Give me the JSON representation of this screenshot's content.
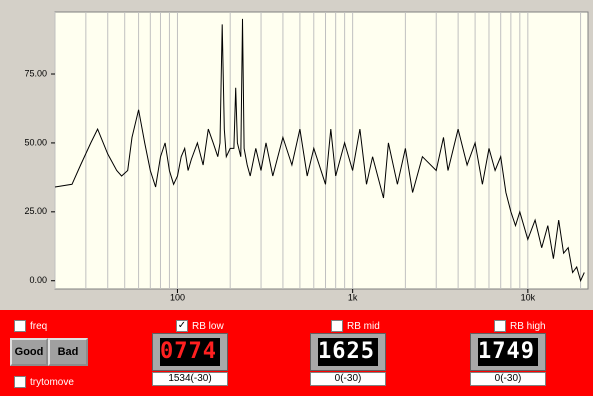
{
  "chart_data": {
    "type": "line",
    "color": "#000000",
    "log_x": true,
    "x": [
      20,
      25,
      28,
      32,
      35,
      40,
      45,
      48,
      52,
      55,
      60,
      65,
      70,
      75,
      80,
      85,
      90,
      95,
      100,
      105,
      110,
      115,
      120,
      130,
      140,
      150,
      160,
      170,
      175,
      180,
      185,
      190,
      200,
      210,
      215,
      220,
      230,
      235,
      240,
      250,
      260,
      280,
      300,
      320,
      350,
      400,
      450,
      500,
      550,
      600,
      700,
      750,
      800,
      900,
      1000,
      1100,
      1200,
      1300,
      1500,
      1600,
      1800,
      2000,
      2200,
      2500,
      3000,
      3300,
      3500,
      4000,
      4500,
      5000,
      5500,
      6000,
      6500,
      7000,
      7500,
      8000,
      8500,
      9000,
      10000,
      11000,
      12000,
      13000,
      14000,
      15000,
      16000,
      17000,
      18000,
      19000,
      20000,
      21000
    ],
    "values": [
      34,
      35,
      42,
      50,
      55,
      46,
      40,
      38,
      40,
      52,
      62,
      50,
      40,
      34,
      45,
      50,
      40,
      35,
      38,
      45,
      48,
      40,
      44,
      50,
      42,
      55,
      50,
      45,
      50,
      93,
      55,
      45,
      48,
      48,
      70,
      50,
      45,
      95,
      48,
      42,
      38,
      48,
      40,
      50,
      38,
      52,
      42,
      55,
      38,
      48,
      35,
      55,
      38,
      50,
      40,
      55,
      35,
      45,
      30,
      50,
      35,
      48,
      32,
      45,
      40,
      52,
      40,
      55,
      42,
      50,
      35,
      48,
      40,
      45,
      32,
      25,
      20,
      25,
      15,
      22,
      12,
      20,
      8,
      22,
      10,
      12,
      3,
      5,
      0,
      3
    ],
    "xlim": [
      20,
      22050
    ],
    "ylim": [
      -3,
      97.5
    ],
    "xticks": [
      {
        "value": 100,
        "label": "100"
      },
      {
        "value": 1000,
        "label": "1k"
      },
      {
        "value": 10000,
        "label": "10k"
      }
    ],
    "xgrid": [
      20,
      30,
      40,
      50,
      60,
      70,
      80,
      90,
      100,
      200,
      300,
      400,
      500,
      600,
      700,
      800,
      900,
      1000,
      2000,
      3000,
      4000,
      5000,
      6000,
      7000,
      8000,
      9000,
      10000,
      20000
    ],
    "yticks": [
      {
        "value": 0,
        "label": "0.00"
      },
      {
        "value": 25,
        "label": "25.00"
      },
      {
        "value": 50,
        "label": "50.00"
      },
      {
        "value": 75,
        "label": "75.00"
      }
    ]
  },
  "controls": {
    "checkboxes": [
      {
        "label": "freq",
        "checked": false
      },
      {
        "label": "RB low",
        "checked": true
      },
      {
        "label": "RB mid",
        "checked": false
      },
      {
        "label": "RB high",
        "checked": false
      },
      {
        "label": "trytomove",
        "checked": false
      }
    ],
    "buttons": [
      "Good",
      "Bad"
    ],
    "meters": [
      {
        "display": "0774",
        "digit_color": "#ff2020",
        "status": "1534(-30)"
      },
      {
        "display": "1625",
        "digit_color": "#ffffff",
        "status": "0(-30)"
      },
      {
        "display": "1749",
        "digit_color": "#ffffff",
        "status": "0(-30)"
      }
    ]
  }
}
